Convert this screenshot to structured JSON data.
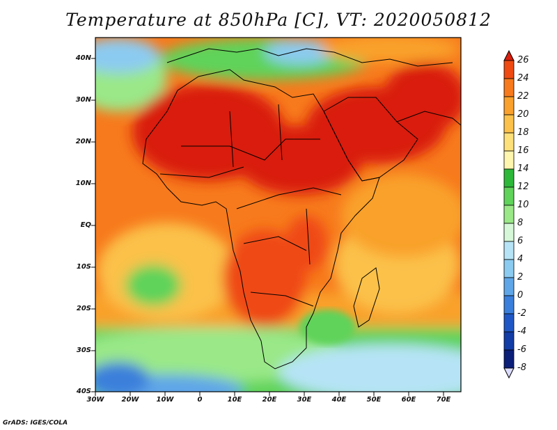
{
  "title": "Temperature at 850hPa [C], VT: 2020050812",
  "credit": "GrADS: IGES/COLA",
  "lat_labels": [
    "40N",
    "30N",
    "20N",
    "10N",
    "EQ",
    "10S",
    "20S",
    "30S",
    "40S"
  ],
  "lon_labels": [
    "30W",
    "20W",
    "10W",
    "0",
    "10E",
    "20E",
    "30E",
    "40E",
    "50E",
    "60E",
    "70E"
  ],
  "colorbar": {
    "labels": [
      "26",
      "24",
      "22",
      "20",
      "18",
      "16",
      "14",
      "12",
      "10",
      "8",
      "6",
      "4",
      "2",
      "0",
      "-2",
      "-4",
      "-6",
      "-8"
    ],
    "colors": [
      "#d91f0e",
      "#ef4a12",
      "#f77a1c",
      "#f9a12c",
      "#fbc14a",
      "#fde07a",
      "#fef5ae",
      "#2db83a",
      "#5fd35a",
      "#9ae888",
      "#d6f8d8",
      "#b6e4f6",
      "#8ccbf1",
      "#5fa6e8",
      "#3a7fdb",
      "#1f58c6",
      "#123ca6",
      "#0b1e78",
      "#dcdcff"
    ],
    "units": "C"
  },
  "map": {
    "region": "Africa and surroundings",
    "lat_range": [
      -40,
      45
    ],
    "lon_range": [
      -30,
      75
    ]
  }
}
